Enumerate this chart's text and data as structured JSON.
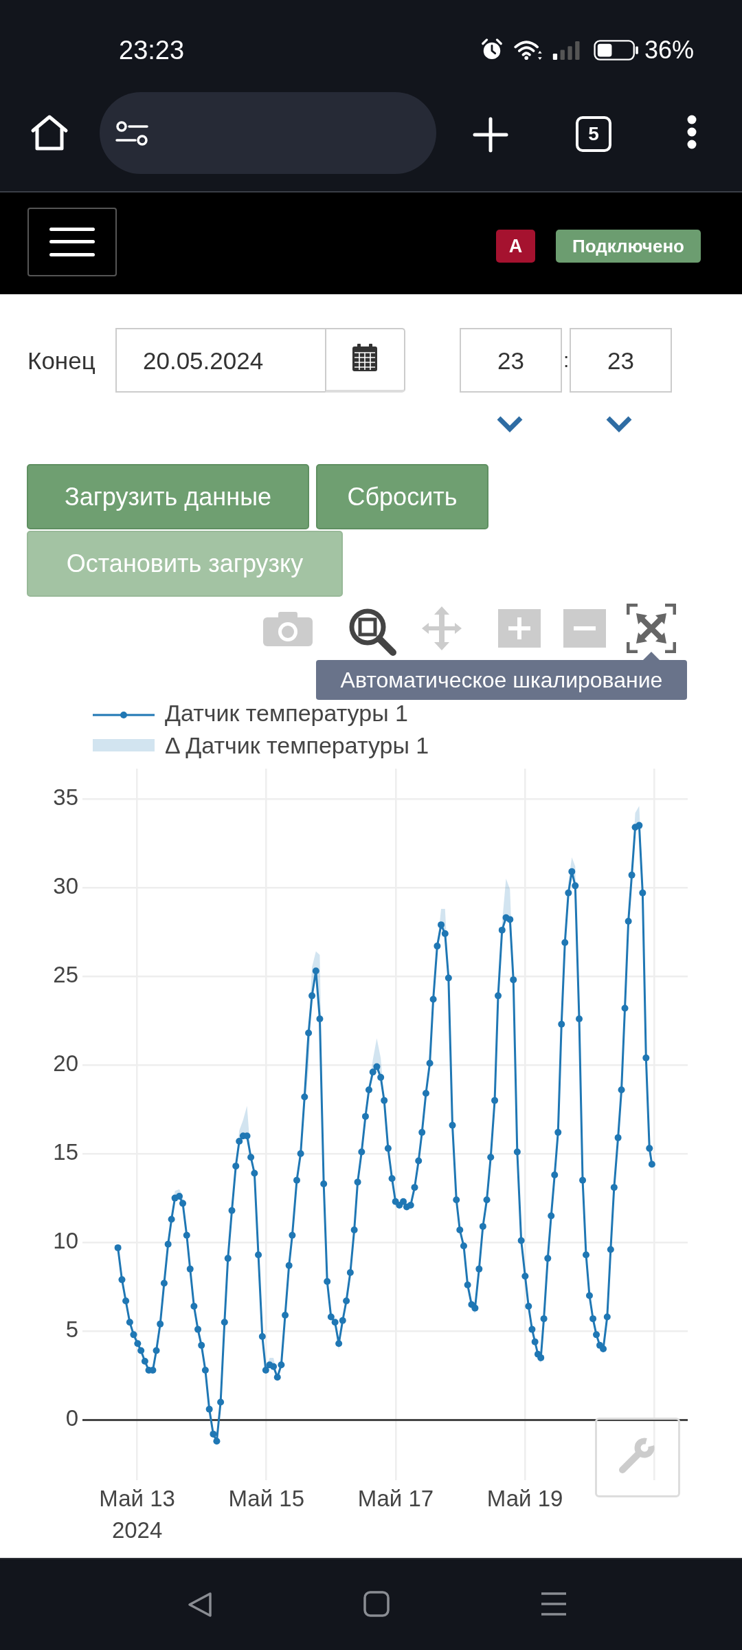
{
  "chart_data": {
    "type": "line",
    "x": [
      "2024-05-12T16:52",
      "2024-05-12T18:22",
      "2024-05-12T19:48",
      "2024-05-12T21:16",
      "2024-05-12T22:42",
      "2024-05-13T00:12",
      "2024-05-13T01:26",
      "2024-05-13T02:53",
      "2024-05-13T04:19",
      "2024-05-13T05:50",
      "2024-05-13T07:08",
      "2024-05-13T08:34",
      "2024-05-13T10:02",
      "2024-05-13T11:30",
      "2024-05-13T12:46",
      "2024-05-13T14:02",
      "2024-05-13T15:40",
      "2024-05-13T16:57",
      "2024-05-13T18:25",
      "2024-05-13T19:41",
      "2024-05-13T21:07",
      "2024-05-13T22:34",
      "2024-05-13T23:53",
      "2024-05-14T01:20",
      "2024-05-14T02:48",
      "2024-05-14T04:16",
      "2024-05-14T05:33",
      "2024-05-14T07:00",
      "2024-05-14T08:27",
      "2024-05-14T09:43",
      "2024-05-14T11:11",
      "2024-05-14T12:39",
      "2024-05-14T13:55",
      "2024-05-14T15:22",
      "2024-05-14T16:48",
      "2024-05-14T18:14",
      "2024-05-14T19:34",
      "2024-05-14T21:01",
      "2024-05-14T22:29",
      "2024-05-14T23:46",
      "2024-05-15T01:12",
      "2024-05-15T02:38",
      "2024-05-15T04:05",
      "2024-05-15T05:31",
      "2024-05-15T06:58",
      "2024-05-15T08:24",
      "2024-05-15T09:36",
      "2024-05-15T11:17",
      "2024-05-15T12:43",
      "2024-05-15T14:10",
      "2024-05-15T15:39",
      "2024-05-15T16:55",
      "2024-05-15T18:23",
      "2024-05-15T19:49",
      "2024-05-15T21:17",
      "2024-05-15T22:34",
      "2024-05-16T00:00",
      "2024-05-16T01:29",
      "2024-05-16T02:53",
      "2024-05-16T04:19",
      "2024-05-16T05:41",
      "2024-05-16T07:09",
      "2024-05-16T08:37",
      "2024-05-16T09:53",
      "2024-05-16T11:21",
      "2024-05-16T12:47",
      "2024-05-16T14:04",
      "2024-05-16T15:32",
      "2024-05-16T16:59",
      "2024-05-16T18:27",
      "2024-05-16T19:44",
      "2024-05-16T21:11",
      "2024-05-16T22:38",
      "2024-05-16T23:56",
      "2024-05-17T01:22",
      "2024-05-17T02:50",
      "2024-05-17T04:06",
      "2024-05-17T05:34",
      "2024-05-17T07:02",
      "2024-05-17T08:30",
      "2024-05-17T09:46",
      "2024-05-17T11:14",
      "2024-05-17T12:40",
      "2024-05-17T13:57",
      "2024-05-17T15:25",
      "2024-05-17T16:52",
      "2024-05-17T18:20",
      "2024-05-17T19:37",
      "2024-05-17T21:04",
      "2024-05-17T22:32",
      "2024-05-17T23:49",
      "2024-05-18T01:16",
      "2024-05-18T02:43",
      "2024-05-18T04:11",
      "2024-05-18T05:28",
      "2024-05-18T06:58",
      "2024-05-18T08:23",
      "2024-05-18T09:50",
      "2024-05-18T11:17",
      "2024-05-18T12:46",
      "2024-05-18T14:02",
      "2024-05-18T15:30",
      "2024-05-18T16:58",
      "2024-05-18T18:26",
      "2024-05-18T19:42",
      "2024-05-18T21:08",
      "2024-05-18T22:37",
      "2024-05-19T00:04",
      "2024-05-19T01:20",
      "2024-05-19T02:38",
      "2024-05-19T03:43",
      "2024-05-19T04:48",
      "2024-05-19T05:54",
      "2024-05-19T07:01",
      "2024-05-19T08:28",
      "2024-05-19T09:44",
      "2024-05-19T11:01",
      "2024-05-19T12:17",
      "2024-05-19T13:34",
      "2024-05-19T14:50",
      "2024-05-19T16:08",
      "2024-05-19T17:24",
      "2024-05-19T18:40",
      "2024-05-19T20:08",
      "2024-05-19T21:25",
      "2024-05-19T22:41",
      "2024-05-19T23:57",
      "2024-05-20T01:15",
      "2024-05-20T02:31",
      "2024-05-20T03:47",
      "2024-05-20T05:04",
      "2024-05-20T06:32",
      "2024-05-20T07:49",
      "2024-05-20T09:06",
      "2024-05-20T10:34",
      "2024-05-20T11:50",
      "2024-05-20T13:06",
      "2024-05-20T14:24",
      "2024-05-20T15:40",
      "2024-05-20T16:56",
      "2024-05-20T18:25",
      "2024-05-20T19:41",
      "2024-05-20T20:57",
      "2024-05-20T22:13",
      "2024-05-20T23:08"
    ],
    "series": [
      {
        "name": "Датчик температуры 1",
        "color": "#1f77b4",
        "values": [
          9.7,
          7.9,
          6.7,
          5.5,
          4.8,
          4.3,
          3.9,
          3.3,
          2.8,
          2.8,
          3.9,
          5.4,
          7.7,
          9.9,
          11.3,
          12.5,
          12.6,
          12.2,
          10.4,
          8.5,
          6.4,
          5.1,
          4.2,
          2.8,
          0.6,
          -0.8,
          -1.2,
          1.0,
          5.5,
          9.1,
          11.8,
          14.3,
          15.7,
          16.0,
          16.0,
          14.8,
          13.9,
          9.3,
          4.7,
          2.8,
          3.1,
          3.0,
          2.4,
          3.1,
          5.9,
          8.7,
          10.4,
          13.5,
          15.0,
          18.2,
          21.8,
          23.9,
          25.3,
          22.6,
          13.3,
          7.8,
          5.8,
          5.5,
          4.3,
          5.6,
          6.7,
          8.3,
          10.7,
          13.4,
          15.1,
          17.1,
          18.6,
          19.6,
          19.9,
          19.3,
          18.0,
          15.3,
          13.6,
          12.3,
          12.1,
          12.3,
          12.0,
          12.1,
          13.1,
          14.6,
          16.2,
          18.4,
          20.1,
          23.7,
          26.7,
          27.9,
          27.4,
          24.9,
          16.6,
          12.4,
          10.7,
          9.8,
          7.6,
          6.5,
          6.3,
          8.5,
          10.9,
          12.4,
          14.8,
          18.0,
          23.9,
          27.6,
          28.3,
          28.2,
          24.8,
          15.1,
          10.1,
          8.1,
          6.4,
          5.1,
          4.4,
          3.7,
          3.5,
          5.7,
          9.1,
          11.5,
          13.8,
          16.2,
          22.3,
          26.9,
          29.7,
          30.9,
          30.1,
          22.6,
          13.5,
          9.3,
          7.0,
          5.7,
          4.8,
          4.2,
          4.0,
          5.8,
          9.6,
          13.1,
          15.9,
          18.6,
          23.2,
          28.1,
          30.7,
          33.4,
          33.5,
          29.7,
          20.4,
          15.3,
          14.4
        ],
        "lower": [
          9.7,
          7.9,
          6.7,
          5.5,
          4.8,
          4.3,
          3.9,
          3.3,
          2.6,
          2.6,
          3.9,
          5.4,
          7.7,
          9.9,
          11.3,
          12.5,
          12.6,
          12.2,
          10.4,
          8.5,
          6.4,
          5.1,
          4.2,
          2.8,
          0.6,
          -0.8,
          -1.2,
          1.0,
          5.5,
          9.1,
          11.8,
          14.3,
          15.7,
          16.0,
          16.0,
          14.8,
          13.9,
          9.3,
          4.7,
          2.8,
          3.1,
          3.0,
          2.2,
          3.1,
          5.9,
          8.7,
          10.4,
          13.5,
          15.0,
          17.6,
          19.8,
          23.9,
          25.3,
          22.6,
          13.3,
          7.8,
          5.8,
          5.2,
          3.9,
          5.6,
          6.7,
          8.3,
          10.7,
          13.4,
          15.1,
          17.1,
          18.6,
          19.6,
          19.9,
          19.3,
          18.0,
          15.3,
          13.6,
          12.3,
          12.1,
          12.3,
          12.0,
          12.1,
          13.1,
          14.6,
          16.2,
          18.4,
          20.1,
          23.7,
          26.7,
          27.9,
          27.4,
          24.9,
          16.6,
          12.4,
          10.7,
          9.8,
          7.6,
          6.2,
          6.0,
          8.5,
          10.9,
          12.4,
          14.8,
          18.0,
          23.9,
          27.6,
          28.3,
          28.2,
          24.8,
          15.1,
          10.1,
          8.1,
          6.4,
          5.1,
          4.4,
          3.4,
          3.2,
          5.7,
          9.1,
          11.5,
          13.8,
          16.2,
          22.3,
          26.9,
          29.7,
          30.9,
          30.1,
          22.6,
          13.5,
          9.3,
          7.0,
          5.7,
          4.8,
          4.0,
          3.8,
          5.8,
          9.6,
          13.1,
          15.9,
          18.6,
          23.2,
          28.1,
          30.7,
          33.4,
          33.5,
          29.7,
          20.4,
          15.3,
          14.4
        ],
        "upper": [
          9.7,
          7.9,
          6.7,
          5.5,
          4.8,
          4.3,
          3.9,
          3.3,
          2.8,
          2.8,
          3.9,
          5.4,
          7.7,
          9.9,
          11.3,
          12.9,
          13.0,
          12.6,
          10.4,
          8.5,
          6.4,
          5.1,
          4.2,
          2.8,
          0.6,
          -0.8,
          -1.2,
          1.0,
          5.5,
          9.1,
          11.8,
          14.3,
          16.3,
          16.9,
          17.7,
          14.8,
          13.9,
          9.3,
          4.7,
          2.8,
          3.5,
          3.5,
          2.4,
          3.1,
          5.9,
          8.7,
          10.4,
          13.5,
          15.0,
          18.2,
          21.8,
          25.5,
          26.4,
          26.2,
          13.3,
          7.8,
          5.8,
          5.5,
          4.3,
          5.6,
          6.7,
          8.3,
          10.7,
          13.4,
          15.1,
          17.1,
          18.6,
          20.3,
          21.5,
          20.4,
          18.0,
          15.3,
          13.6,
          12.3,
          12.1,
          12.3,
          12.0,
          12.1,
          13.1,
          14.6,
          16.2,
          18.4,
          20.1,
          23.7,
          26.7,
          28.8,
          28.8,
          24.9,
          16.6,
          12.4,
          10.7,
          9.8,
          7.6,
          6.5,
          6.3,
          8.5,
          10.9,
          12.4,
          14.8,
          18.0,
          23.9,
          28.0,
          30.5,
          29.9,
          24.8,
          15.1,
          10.1,
          8.1,
          6.4,
          5.1,
          4.4,
          3.7,
          3.5,
          5.7,
          9.1,
          11.5,
          13.8,
          16.2,
          22.3,
          26.9,
          30.3,
          31.7,
          31.2,
          22.6,
          13.5,
          9.3,
          7.0,
          5.7,
          4.8,
          4.2,
          4.0,
          5.8,
          9.6,
          13.1,
          15.9,
          18.6,
          23.2,
          28.1,
          30.7,
          34.2,
          34.6,
          30.3,
          20.4,
          15.3,
          14.4
        ]
      }
    ],
    "xlim": [
      "2024-05-12T03:42",
      "2024-05-21T12:26"
    ],
    "xticks": [
      {
        "value": "2024-05-13",
        "label": "Май 13\n2024"
      },
      {
        "value": "2024-05-15",
        "label": "Май 15"
      },
      {
        "value": "2024-05-17",
        "label": "Май 17"
      },
      {
        "value": "2024-05-19",
        "label": "Май 19"
      },
      {
        "value": "2024-05-21",
        "label": null
      }
    ],
    "ylim": [
      -3.4,
      36.7
    ],
    "yticks": [
      0,
      5,
      10,
      15,
      20,
      25,
      30,
      35
    ],
    "grid": true,
    "legend": "top left",
    "marker": "circle",
    "line_style": "solid",
    "annotations": [
      "23:23",
      "36%",
      "5",
      "A",
      "Подключено",
      "Конец",
      "20.05.2024",
      "23",
      ":",
      "23",
      "Загрузить данные",
      "Сбросить",
      "Остановить загрузку",
      "Автоматическое шкалирование",
      "Δ Датчик температуры 1"
    ]
  }
}
